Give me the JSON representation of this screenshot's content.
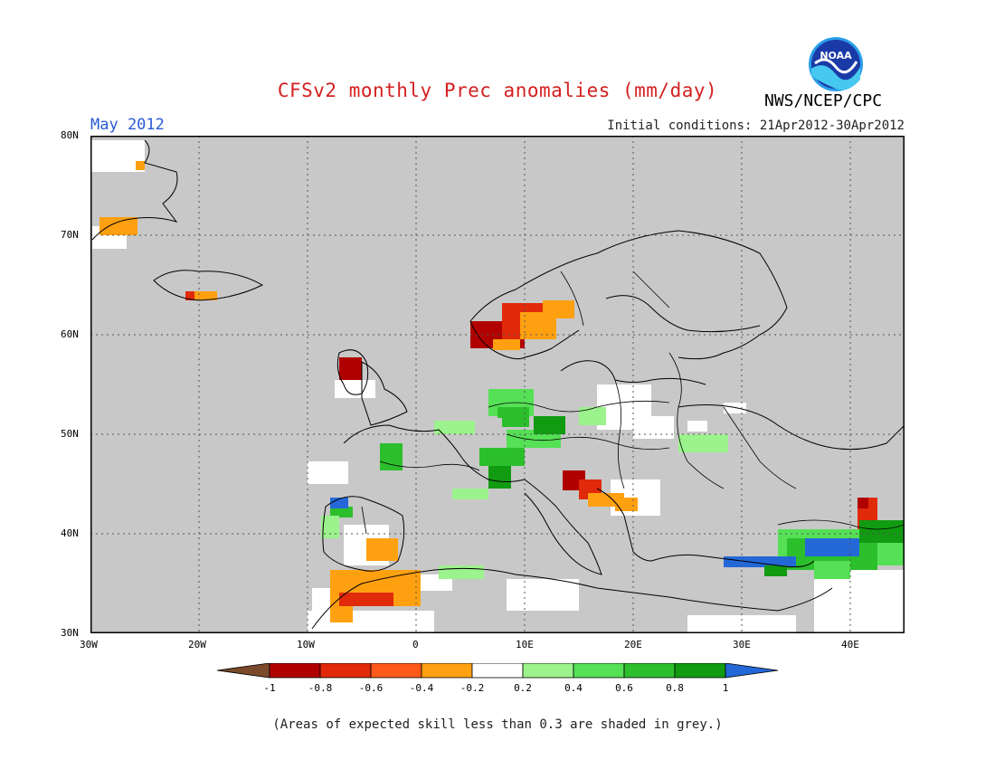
{
  "header": {
    "title": "CFSv2 monthly Prec anomalies (mm/day)",
    "month": "May 2012",
    "init": "Initial conditions: 21Apr2012-30Apr2012",
    "agency": "NWS/NCEP/CPC",
    "logo_text": "NOAA"
  },
  "map": {
    "lat_labels": [
      "80N",
      "70N",
      "60N",
      "50N",
      "40N",
      "30N"
    ],
    "lon_labels": [
      "30W",
      "20W",
      "10W",
      "0",
      "10E",
      "20E",
      "30E",
      "40E"
    ],
    "mask_color": "#c8c8c8",
    "ocean_color": "#ffffff"
  },
  "legend": {
    "labels": [
      "-1",
      "-0.8",
      "-0.6",
      "-0.4",
      "-0.2",
      "0.2",
      "0.4",
      "0.6",
      "0.8",
      "1"
    ],
    "colors": [
      "#7a4a2a",
      "#b00000",
      "#e02a0a",
      "#ff5a1a",
      "#ffa010",
      "#ffffff",
      "#9cf28c",
      "#55e055",
      "#2cbf2c",
      "#119b11",
      "#2468d8"
    ]
  },
  "note": "(Areas of expected skill less than 0.3 are shaded in grey.)"
}
